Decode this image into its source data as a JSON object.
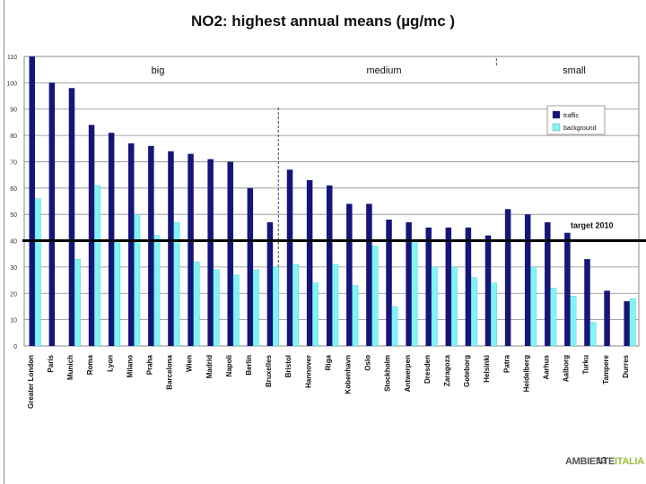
{
  "chart_data": {
    "type": "bar",
    "title": "NO2: highest annual means (µg/mc )",
    "ylim": [
      0,
      110
    ],
    "yticks": [
      0,
      10,
      20,
      30,
      40,
      50,
      60,
      70,
      80,
      90,
      100,
      110
    ],
    "categories": [
      "Greater London",
      "Paris",
      "Munich",
      "Roma",
      "Lyon",
      "Milano",
      "Praha",
      "Barcelona",
      "Wien",
      "Madrid",
      "Napoli",
      "Berlin",
      "Bruxelles",
      "Bristol",
      "Hannover",
      "Riga",
      "Kobenhavn",
      "Oslo",
      "Stockholm",
      "Antwerpen",
      "Dresden",
      "Zaragoza",
      "Goteborg",
      "Helsinki",
      "Patra",
      "Heidelberg",
      "Aarhus",
      "Aalborg",
      "Turku",
      "Tampere",
      "Durres"
    ],
    "series": [
      {
        "name": "traffic",
        "color": "#15157a",
        "values": [
          110,
          100,
          98,
          84,
          81,
          77,
          76,
          74,
          73,
          71,
          70,
          60,
          47,
          67,
          63,
          61,
          54,
          54,
          48,
          47,
          45,
          45,
          45,
          42,
          52,
          50,
          47,
          43,
          33,
          21,
          17
        ]
      },
      {
        "name": "background",
        "color": "#7ff5f5",
        "values": [
          56,
          null,
          33,
          61,
          40,
          50,
          42,
          47,
          32,
          29,
          27,
          29,
          30,
          31,
          24,
          31,
          23,
          38,
          15,
          40,
          30,
          30,
          26,
          24,
          null,
          30,
          22,
          19,
          9,
          null,
          18
        ]
      }
    ],
    "target": {
      "value": 40,
      "label": "target 2010"
    },
    "groups": [
      {
        "label": "big",
        "from": 0,
        "to": 12
      },
      {
        "label": "medium",
        "from": 13,
        "to": 23
      },
      {
        "label": "small",
        "from": 24,
        "to": 30
      }
    ],
    "legend": [
      "traffic",
      "background"
    ]
  },
  "footer": {
    "logo_main": "AMBIENTE",
    "logo_accent": "ITALIA",
    "page": "13"
  }
}
